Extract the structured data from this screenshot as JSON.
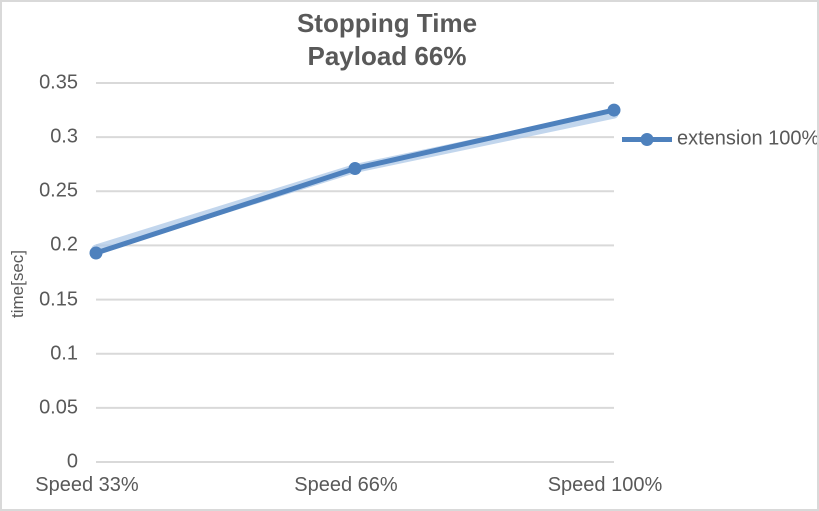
{
  "chart": {
    "title_line1": "Stopping Time",
    "title_line2": "Payload 66%",
    "y_axis_title": "time[sec]",
    "legend_label": "extension 100%"
  },
  "chart_data": {
    "type": "line",
    "title": "Stopping Time",
    "subtitle": "Payload 66%",
    "categories": [
      "Speed 33%",
      "Speed 66%",
      "Speed 100%"
    ],
    "series": [
      {
        "name": "extension 100%",
        "values": [
          0.193,
          0.271,
          0.325
        ],
        "color": "#4e81bd",
        "marker": "circle",
        "glow_color": "#aec8e7"
      }
    ],
    "xlabel": "",
    "ylabel": "time[sec]",
    "ylim": [
      0,
      0.35
    ],
    "ytick_values": [
      0,
      0.05,
      0.1,
      0.15,
      0.2,
      0.25,
      0.3,
      0.35
    ],
    "ytick_labels": [
      "0",
      "0.05",
      "0.1",
      "0.15",
      "0.2",
      "0.25",
      "0.3",
      "0.35"
    ],
    "grid": true,
    "gridline_color": "#d9d9d9",
    "text_color": "#595959",
    "legend_position": "right"
  }
}
